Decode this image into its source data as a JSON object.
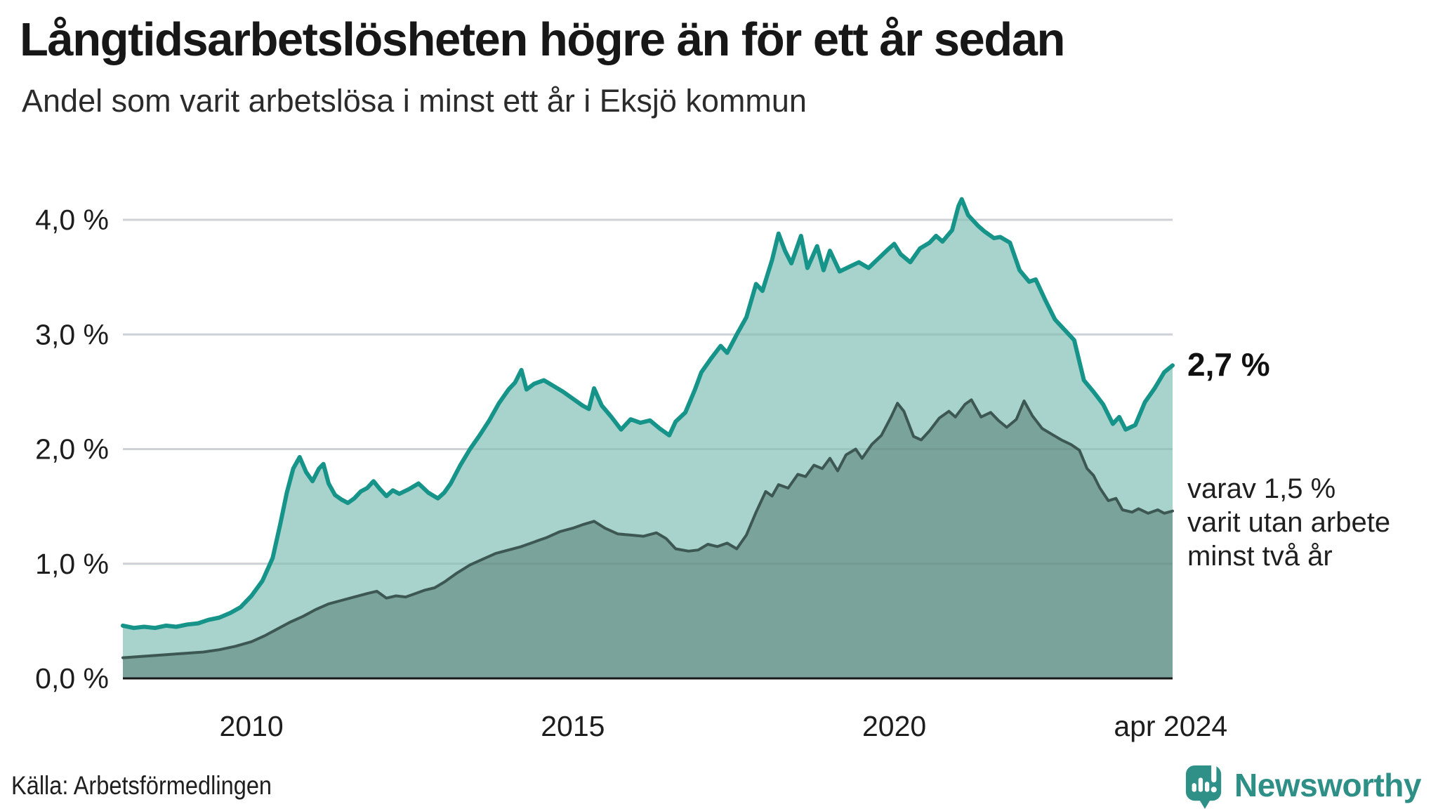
{
  "title": "Långtidsarbetslösheten högre än för ett år sedan",
  "subtitle": "Andel som varit arbetslösa i minst ett år i Eksjö kommun",
  "source": "Källa: Arbetsförmedlingen",
  "logo": {
    "text": "Newsworthy",
    "color": "#2e8f87",
    "icon_color": "#2f9088"
  },
  "annotations": {
    "latest_value": "2,7 %",
    "secondary_line1": "varav 1,5 %",
    "secondary_line2": "varit utan arbete",
    "secondary_line3": "minst två år"
  },
  "colors": {
    "series1_stroke": "#17948a",
    "series1_fill": "#a7d3cc",
    "series2_stroke": "#3d5853",
    "series2_fill": "#7aa39b",
    "gridline": "#e4e4e8",
    "gridline_overlay": "rgba(80,105,105,0.14)",
    "axis_line": "#181818",
    "tick_text": "#1d1d1d"
  },
  "chart_data": {
    "type": "area",
    "title": "Långtidsarbetslösheten högre än för ett år sedan",
    "subtitle": "Andel som varit arbetslösa i minst ett år i Eksjö kommun",
    "xlabel": "",
    "ylabel": "",
    "xlim": [
      2008.0,
      2024.33
    ],
    "ylim": [
      0,
      4.35
    ],
    "grid": "horizontal",
    "legend_position": "right-annotations",
    "y_ticks": [
      {
        "v": 4,
        "label": "4,0 %"
      },
      {
        "v": 3,
        "label": "3,0 %"
      },
      {
        "v": 2,
        "label": "2,0 %"
      },
      {
        "v": 1,
        "label": "1,0 %"
      },
      {
        "v": 0,
        "label": "0,0 %"
      }
    ],
    "x_ticks": [
      {
        "x": 2010.0,
        "label": "2010"
      },
      {
        "x": 2015.0,
        "label": "2015"
      },
      {
        "x": 2020.0,
        "label": "2020"
      },
      {
        "x": 2024.3,
        "label": "apr 2024"
      }
    ],
    "series": [
      {
        "name": "Andel som varit arbetslösa i minst ett år",
        "end_label": "2,7 %",
        "x": [
          2008.0,
          2008.17,
          2008.33,
          2008.5,
          2008.67,
          2008.83,
          2009.0,
          2009.17,
          2009.33,
          2009.5,
          2009.67,
          2009.83,
          2010.0,
          2010.17,
          2010.33,
          2010.45,
          2010.55,
          2010.65,
          2010.75,
          2010.85,
          2010.95,
          2011.05,
          2011.12,
          2011.2,
          2011.3,
          2011.4,
          2011.5,
          2011.6,
          2011.7,
          2011.8,
          2011.9,
          2012.0,
          2012.1,
          2012.2,
          2012.3,
          2012.45,
          2012.6,
          2012.75,
          2012.9,
          2013.0,
          2013.1,
          2013.25,
          2013.4,
          2013.55,
          2013.7,
          2013.85,
          2014.0,
          2014.1,
          2014.2,
          2014.28,
          2014.4,
          2014.55,
          2014.7,
          2014.85,
          2015.0,
          2015.15,
          2015.25,
          2015.33,
          2015.45,
          2015.6,
          2015.75,
          2015.9,
          2016.05,
          2016.2,
          2016.35,
          2016.5,
          2016.6,
          2016.75,
          2016.9,
          2017.0,
          2017.15,
          2017.3,
          2017.4,
          2017.55,
          2017.7,
          2017.85,
          2017.95,
          2018.1,
          2018.2,
          2018.3,
          2018.4,
          2018.55,
          2018.65,
          2018.8,
          2018.9,
          2019.0,
          2019.15,
          2019.3,
          2019.45,
          2019.6,
          2019.75,
          2019.9,
          2020.0,
          2020.1,
          2020.25,
          2020.4,
          2020.55,
          2020.65,
          2020.75,
          2020.9,
          2021.0,
          2021.05,
          2021.15,
          2021.3,
          2021.4,
          2021.55,
          2021.65,
          2021.8,
          2021.95,
          2022.1,
          2022.2,
          2022.35,
          2022.5,
          2022.65,
          2022.8,
          2022.95,
          2023.1,
          2023.25,
          2023.4,
          2023.5,
          2023.6,
          2023.75,
          2023.9,
          2024.05,
          2024.2,
          2024.33
        ],
        "values": [
          0.46,
          0.44,
          0.45,
          0.44,
          0.46,
          0.45,
          0.47,
          0.48,
          0.51,
          0.53,
          0.57,
          0.62,
          0.72,
          0.85,
          1.05,
          1.35,
          1.62,
          1.83,
          1.93,
          1.8,
          1.72,
          1.83,
          1.87,
          1.7,
          1.6,
          1.56,
          1.53,
          1.57,
          1.63,
          1.66,
          1.72,
          1.65,
          1.59,
          1.64,
          1.61,
          1.65,
          1.7,
          1.62,
          1.57,
          1.62,
          1.7,
          1.86,
          2.0,
          2.12,
          2.25,
          2.4,
          2.52,
          2.58,
          2.69,
          2.52,
          2.57,
          2.6,
          2.55,
          2.5,
          2.44,
          2.38,
          2.35,
          2.53,
          2.38,
          2.28,
          2.17,
          2.26,
          2.23,
          2.25,
          2.18,
          2.12,
          2.24,
          2.32,
          2.52,
          2.67,
          2.79,
          2.9,
          2.84,
          3.0,
          3.15,
          3.44,
          3.38,
          3.65,
          3.88,
          3.73,
          3.62,
          3.86,
          3.58,
          3.77,
          3.56,
          3.73,
          3.55,
          3.59,
          3.63,
          3.58,
          3.66,
          3.74,
          3.79,
          3.7,
          3.63,
          3.75,
          3.8,
          3.86,
          3.81,
          3.91,
          4.12,
          4.18,
          4.04,
          3.95,
          3.9,
          3.84,
          3.85,
          3.8,
          3.56,
          3.46,
          3.48,
          3.3,
          3.13,
          3.04,
          2.95,
          2.6,
          2.5,
          2.39,
          2.22,
          2.28,
          2.17,
          2.21,
          2.41,
          2.53,
          2.67,
          2.73
        ]
      },
      {
        "name": "varav utan arbete minst två år",
        "end_label": "varav 1,5 % varit utan arbete minst två år",
        "x": [
          2008.0,
          2008.25,
          2008.5,
          2008.75,
          2009.0,
          2009.25,
          2009.5,
          2009.75,
          2010.0,
          2010.2,
          2010.4,
          2010.6,
          2010.8,
          2011.0,
          2011.2,
          2011.4,
          2011.6,
          2011.8,
          2011.95,
          2012.1,
          2012.25,
          2012.4,
          2012.55,
          2012.7,
          2012.85,
          2013.0,
          2013.2,
          2013.4,
          2013.6,
          2013.8,
          2014.0,
          2014.2,
          2014.4,
          2014.6,
          2014.8,
          2015.0,
          2015.15,
          2015.33,
          2015.5,
          2015.7,
          2015.9,
          2016.1,
          2016.3,
          2016.45,
          2016.6,
          2016.8,
          2016.95,
          2017.1,
          2017.25,
          2017.4,
          2017.55,
          2017.7,
          2017.85,
          2018.0,
          2018.1,
          2018.2,
          2018.35,
          2018.5,
          2018.62,
          2018.75,
          2018.88,
          2019.0,
          2019.12,
          2019.25,
          2019.4,
          2019.5,
          2019.65,
          2019.8,
          2019.95,
          2020.05,
          2020.15,
          2020.3,
          2020.42,
          2020.55,
          2020.7,
          2020.85,
          2020.95,
          2021.1,
          2021.2,
          2021.35,
          2021.5,
          2021.62,
          2021.75,
          2021.9,
          2022.02,
          2022.15,
          2022.3,
          2022.45,
          2022.6,
          2022.75,
          2022.88,
          2023.0,
          2023.1,
          2023.2,
          2023.33,
          2023.45,
          2023.55,
          2023.7,
          2023.8,
          2023.95,
          2024.1,
          2024.2,
          2024.33
        ],
        "values": [
          0.18,
          0.19,
          0.2,
          0.21,
          0.22,
          0.23,
          0.25,
          0.28,
          0.32,
          0.37,
          0.43,
          0.49,
          0.54,
          0.6,
          0.65,
          0.68,
          0.71,
          0.74,
          0.76,
          0.7,
          0.72,
          0.71,
          0.74,
          0.77,
          0.79,
          0.84,
          0.92,
          0.99,
          1.04,
          1.09,
          1.12,
          1.15,
          1.19,
          1.23,
          1.28,
          1.31,
          1.34,
          1.37,
          1.31,
          1.26,
          1.25,
          1.24,
          1.27,
          1.22,
          1.13,
          1.11,
          1.12,
          1.17,
          1.15,
          1.18,
          1.13,
          1.25,
          1.45,
          1.63,
          1.59,
          1.69,
          1.66,
          1.78,
          1.76,
          1.86,
          1.83,
          1.92,
          1.81,
          1.95,
          2.0,
          1.92,
          2.04,
          2.12,
          2.28,
          2.4,
          2.33,
          2.11,
          2.08,
          2.16,
          2.27,
          2.33,
          2.28,
          2.39,
          2.43,
          2.28,
          2.32,
          2.25,
          2.19,
          2.26,
          2.42,
          2.29,
          2.18,
          2.13,
          2.08,
          2.04,
          1.99,
          1.83,
          1.77,
          1.66,
          1.55,
          1.57,
          1.47,
          1.45,
          1.48,
          1.44,
          1.47,
          1.44,
          1.46
        ]
      }
    ]
  }
}
